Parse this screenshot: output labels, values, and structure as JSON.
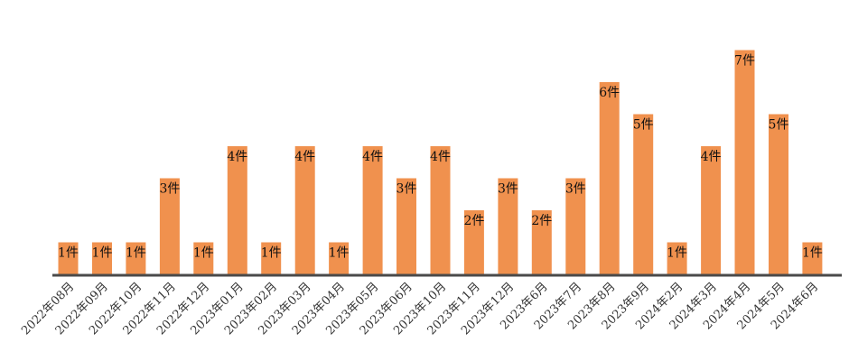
{
  "chart_data": {
    "type": "bar",
    "title": "",
    "xlabel": "",
    "ylabel": "",
    "ylim": [
      0,
      7
    ],
    "grid": false,
    "legend": "none",
    "colors": {
      "bar": "#F0914E",
      "axis": "#4a4a4a",
      "label": "#111111",
      "tick": "#333333"
    },
    "categories": [
      "2022年08月",
      "2022年09月",
      "2022年10月",
      "2022年11月",
      "2022年12月",
      "2023年01月",
      "2023年02月",
      "2023年03月",
      "2023年04月",
      "2023年05月",
      "2023年06月",
      "2023年10月",
      "2023年11月",
      "2023年12月",
      "2023年6月",
      "2023年7月",
      "2023年8月",
      "2023年9月",
      "2024年2月",
      "2024年3月",
      "2024年4月",
      "2024年5月",
      "2024年6月"
    ],
    "values": [
      1,
      1,
      1,
      3,
      1,
      4,
      1,
      4,
      1,
      4,
      3,
      4,
      2,
      3,
      2,
      3,
      6,
      5,
      1,
      4,
      7,
      5,
      1
    ],
    "data_labels": [
      "1件",
      "1件",
      "1件",
      "3件",
      "1件",
      "4件",
      "1件",
      "4件",
      "1件",
      "4件",
      "3件",
      "4件",
      "2件",
      "3件",
      "2件",
      "3件",
      "6件",
      "5件",
      "1件",
      "4件",
      "7件",
      "5件",
      "1件"
    ]
  }
}
